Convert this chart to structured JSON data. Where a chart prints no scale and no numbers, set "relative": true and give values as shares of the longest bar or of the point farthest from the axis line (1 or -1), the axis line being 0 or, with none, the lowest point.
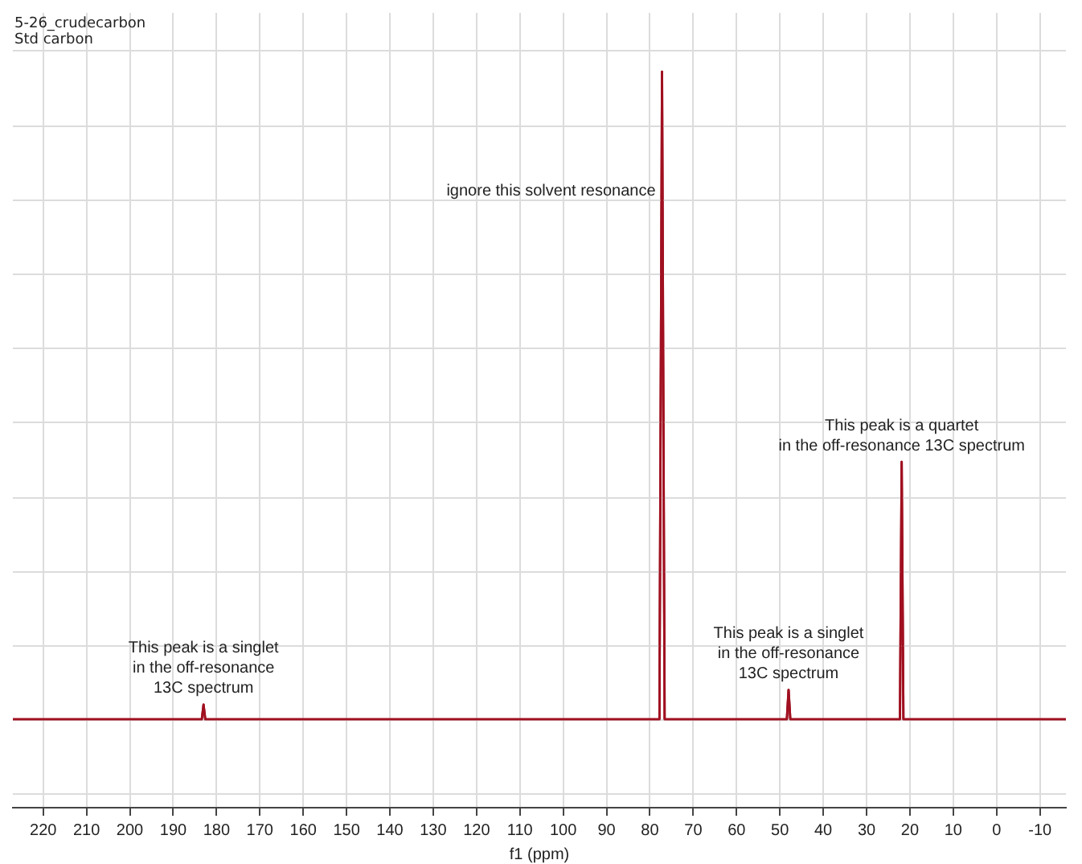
{
  "chart_data": {
    "type": "line",
    "title": "5-26_crudecarbon",
    "subtitle": "Std carbon",
    "xlabel": "f1 (ppm)",
    "relative": true,
    "grid": true,
    "legend": false,
    "marker": "none",
    "line_style": "solid",
    "xlim": [
      227,
      -16
    ],
    "xticks": [
      220,
      210,
      200,
      190,
      180,
      170,
      160,
      150,
      140,
      130,
      120,
      110,
      100,
      90,
      80,
      70,
      60,
      50,
      40,
      30,
      20,
      10,
      0,
      -10
    ],
    "series": [
      {
        "color": "#a01020",
        "x": [
          227,
          183.4,
          183,
          182.6,
          77.8,
          77.2,
          76.6,
          48.4,
          48,
          47.6,
          22.3,
          21.9,
          21.5,
          -16
        ],
        "values": [
          0.12,
          0.12,
          0.14,
          0.12,
          0.12,
          1,
          0.12,
          0.12,
          0.16,
          0.12,
          0.12,
          0.47,
          0.12,
          0.12
        ]
      }
    ],
    "annotations": [
      "ignore this solvent resonance",
      {
        "text": "This peak is a quartet\nin the off-resonance 13C spectrum",
        "x": 21.9,
        "y": 0.47
      },
      {
        "text": "This peak is a singlet\nin the off-resonance\n13C spectrum",
        "x": 48,
        "y": 0.16
      },
      {
        "text": "This peak is a singlet\nin the off-resonance\n13C spectrum",
        "x": 183,
        "y": 0.14
      }
    ]
  }
}
